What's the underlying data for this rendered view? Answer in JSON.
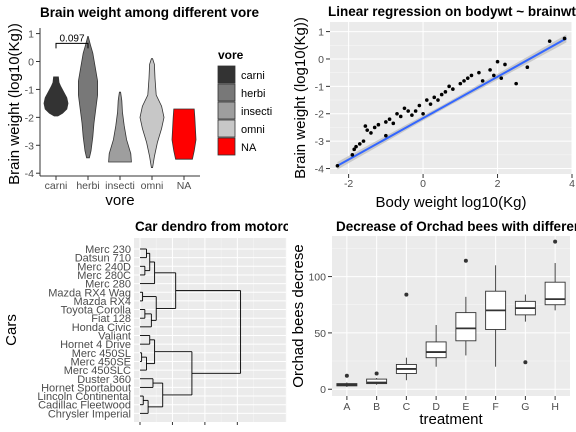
{
  "chart_data": [
    {
      "type": "violin",
      "title": "Brain weight among different vore",
      "xlabel": "vore",
      "ylabel": "Brain weight (log10(Kg))",
      "categories": [
        "carni",
        "herbi",
        "insecti",
        "omni",
        "NA"
      ],
      "ylim": [
        -4.1,
        1.2
      ],
      "yticks": [
        -4,
        -3,
        -2,
        -1,
        0,
        1
      ],
      "violins": [
        {
          "name": "carni",
          "color": "#333333",
          "profile": [
            [
              -1.95,
              0.15
            ],
            [
              -1.85,
              0.55
            ],
            [
              -1.7,
              0.9
            ],
            [
              -1.5,
              1.0
            ],
            [
              -1.3,
              0.9
            ],
            [
              -1.1,
              0.65
            ],
            [
              -0.9,
              0.4
            ],
            [
              -0.75,
              0.25
            ],
            [
              -0.55,
              0.2
            ]
          ]
        },
        {
          "name": "herbi",
          "color": "#787878",
          "profile": [
            [
              -3.45,
              0.12
            ],
            [
              -3.2,
              0.25
            ],
            [
              -2.7,
              0.4
            ],
            [
              -2.2,
              0.5
            ],
            [
              -1.7,
              0.65
            ],
            [
              -1.2,
              0.8
            ],
            [
              -0.7,
              0.8
            ],
            [
              -0.2,
              0.6
            ],
            [
              0.3,
              0.4
            ],
            [
              0.6,
              0.2
            ],
            [
              0.9,
              0.02
            ]
          ]
        },
        {
          "name": "insecti",
          "color": "#9e9e9e",
          "profile": [
            [
              -3.6,
              0.95
            ],
            [
              -3.3,
              0.9
            ],
            [
              -2.8,
              0.55
            ],
            [
              -2.3,
              0.35
            ],
            [
              -1.8,
              0.2
            ],
            [
              -1.4,
              0.15
            ],
            [
              -1.1,
              0.05
            ]
          ]
        },
        {
          "name": "omni",
          "color": "#c7c7c7",
          "profile": [
            [
              -3.8,
              0.05
            ],
            [
              -3.4,
              0.2
            ],
            [
              -2.9,
              0.45
            ],
            [
              -2.4,
              0.8
            ],
            [
              -2.0,
              1.0
            ],
            [
              -1.6,
              0.8
            ],
            [
              -1.2,
              0.35
            ],
            [
              -0.6,
              0.25
            ],
            [
              -0.1,
              0.2
            ],
            [
              0.1,
              0.05
            ]
          ]
        },
        {
          "name": "NA",
          "color": "#ff0000",
          "profile": [
            [
              -3.5,
              0.7
            ],
            [
              -3.2,
              0.85
            ],
            [
              -2.8,
              1.0
            ],
            [
              -2.4,
              0.95
            ],
            [
              -2.0,
              0.9
            ],
            [
              -1.7,
              0.85
            ]
          ]
        }
      ],
      "annotation": {
        "label": "0.097",
        "from": "carni",
        "to": "herbi",
        "y": 0.65
      },
      "legend": {
        "title": "vore",
        "items": [
          "carni",
          "herbi",
          "insecti",
          "omni",
          "NA"
        ],
        "colors": [
          "#333333",
          "#787878",
          "#9e9e9e",
          "#c7c7c7",
          "#ff0000"
        ],
        "placement": "right"
      }
    },
    {
      "type": "scatter",
      "title": "Linear regression on bodywt ~ brainwt",
      "xlabel": "Body weight log10(Kg)",
      "ylabel": "Brain weight (log10(Kg))",
      "xlim": [
        -2.5,
        4.0
      ],
      "ylim": [
        -4.2,
        1.35
      ],
      "xticks": [
        -2,
        0,
        2,
        4
      ],
      "yticks": [
        -4,
        -3,
        -2,
        -1,
        0,
        1
      ],
      "regression": {
        "x": [
          -2.3,
          3.85
        ],
        "y": [
          -3.9,
          0.75
        ],
        "color": "#3366ff",
        "band": "#bdbdbd"
      },
      "points": [
        [
          -2.3,
          -3.9
        ],
        [
          -1.9,
          -3.5
        ],
        [
          -1.85,
          -3.3
        ],
        [
          -1.8,
          -3.2
        ],
        [
          -1.7,
          -3.1
        ],
        [
          -1.6,
          -3.0
        ],
        [
          -1.5,
          -2.6
        ],
        [
          -1.55,
          -2.45
        ],
        [
          -1.4,
          -2.7
        ],
        [
          -1.3,
          -2.5
        ],
        [
          -1.2,
          -2.4
        ],
        [
          -1.0,
          -2.8
        ],
        [
          -1.0,
          -2.3
        ],
        [
          -0.9,
          -2.2
        ],
        [
          -0.8,
          -2.35
        ],
        [
          -0.7,
          -2.0
        ],
        [
          -0.6,
          -2.1
        ],
        [
          -0.5,
          -1.8
        ],
        [
          -0.4,
          -1.9
        ],
        [
          -0.3,
          -2.05
        ],
        [
          -0.2,
          -1.9
        ],
        [
          -0.1,
          -1.7
        ],
        [
          0.0,
          -2.0
        ],
        [
          0.1,
          -1.5
        ],
        [
          0.2,
          -1.65
        ],
        [
          0.3,
          -1.4
        ],
        [
          0.4,
          -1.5
        ],
        [
          0.5,
          -1.3
        ],
        [
          0.6,
          -1.2
        ],
        [
          0.7,
          -1.0
        ],
        [
          0.8,
          -1.1
        ],
        [
          1.0,
          -0.9
        ],
        [
          1.1,
          -0.8
        ],
        [
          1.2,
          -0.7
        ],
        [
          1.3,
          -0.6
        ],
        [
          1.5,
          -0.5
        ],
        [
          1.6,
          -0.8
        ],
        [
          1.8,
          -0.4
        ],
        [
          1.9,
          -0.6
        ],
        [
          2.0,
          -0.1
        ],
        [
          2.1,
          -0.7
        ],
        [
          2.2,
          -0.2
        ],
        [
          2.5,
          -0.9
        ],
        [
          2.8,
          -0.3
        ],
        [
          3.4,
          0.65
        ],
        [
          3.8,
          0.75
        ]
      ]
    },
    {
      "type": "dendrogram",
      "title": "Car dendro from motorcars",
      "ylabel": "Cars",
      "leaves": [
        "Merc 230",
        "Datsun 710",
        "Merc 240D",
        "Merc 280C",
        "Merc 280",
        "Mazda RX4 Wag",
        "Mazda RX4",
        "Toyota Corolla",
        "Fiat 128",
        "Honda Civic",
        "Valiant",
        "Hornet 4 Drive",
        "Merc 450SL",
        "Merc 450SE",
        "Merc 450SLC",
        "Duster 360",
        "Hornet Sportabout",
        "Lincoln Continental",
        "Cadillac Fleetwood",
        "Chrysler Imperial"
      ],
      "heights_axis": [
        0,
        1,
        2,
        3
      ]
    },
    {
      "type": "boxplot",
      "title": "Decrease of Orchad bees with different treatments",
      "xlabel": "treatment",
      "ylabel": "Orchad bees decrese",
      "categories": [
        "A",
        "B",
        "C",
        "D",
        "E",
        "F",
        "G",
        "H"
      ],
      "ylim": [
        -6,
        136
      ],
      "yticks": [
        0,
        50,
        100
      ],
      "boxes": [
        {
          "name": "A",
          "min": 2,
          "q1": 3,
          "median": 4,
          "q3": 5,
          "max": 6,
          "outliers": [
            12
          ]
        },
        {
          "name": "B",
          "min": 4,
          "q1": 5,
          "median": 6,
          "q3": 9,
          "max": 10,
          "outliers": [
            14
          ]
        },
        {
          "name": "C",
          "min": 8,
          "q1": 14,
          "median": 18,
          "q3": 22,
          "max": 28,
          "outliers": [
            84
          ]
        },
        {
          "name": "D",
          "min": 20,
          "q1": 28,
          "median": 33,
          "q3": 42,
          "max": 57,
          "outliers": []
        },
        {
          "name": "E",
          "min": 30,
          "q1": 43,
          "median": 54,
          "q3": 68,
          "max": 82,
          "outliers": [
            114
          ]
        },
        {
          "name": "F",
          "min": 20,
          "q1": 53,
          "median": 70,
          "q3": 87,
          "max": 110,
          "outliers": []
        },
        {
          "name": "G",
          "min": 60,
          "q1": 66,
          "median": 72,
          "q3": 78,
          "max": 84,
          "outliers": [
            24
          ]
        },
        {
          "name": "H",
          "min": 70,
          "q1": 75,
          "median": 80,
          "q3": 95,
          "max": 112,
          "outliers": [
            131
          ]
        }
      ]
    }
  ]
}
